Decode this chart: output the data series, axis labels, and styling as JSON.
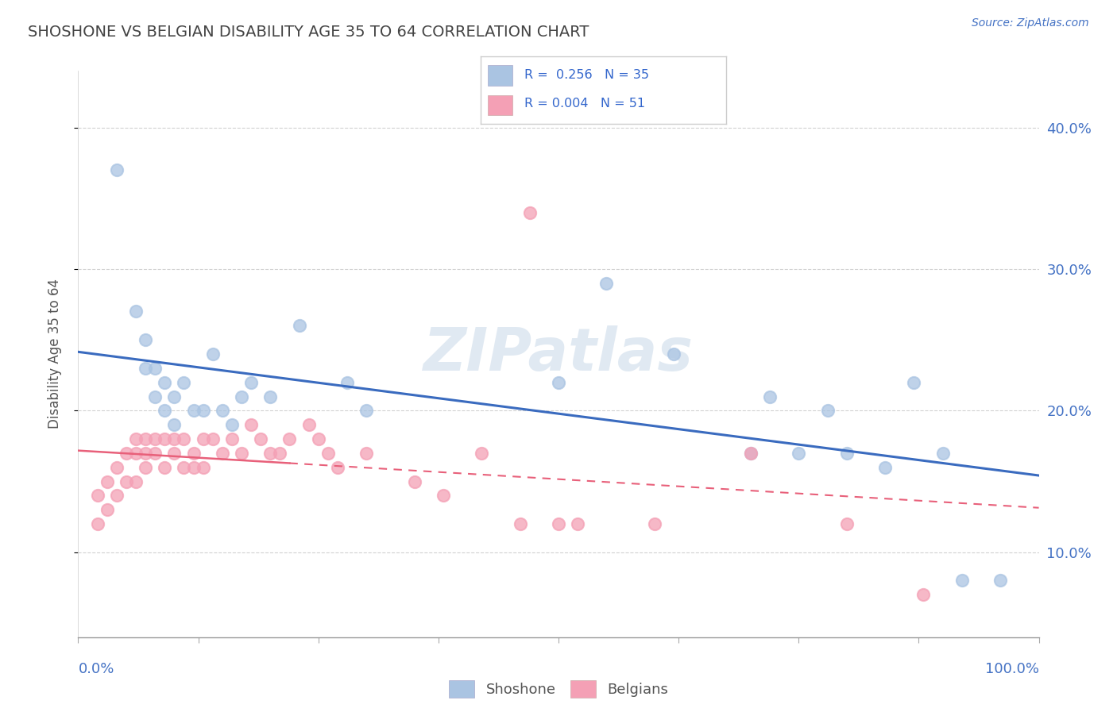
{
  "title": "SHOSHONE VS BELGIAN DISABILITY AGE 35 TO 64 CORRELATION CHART",
  "source_text": "Source: ZipAtlas.com",
  "ylabel": "Disability Age 35 to 64",
  "yticks": [
    0.1,
    0.2,
    0.3,
    0.4
  ],
  "ytick_labels": [
    "10.0%",
    "20.0%",
    "30.0%",
    "40.0%"
  ],
  "xlim": [
    0.0,
    1.0
  ],
  "ylim": [
    0.04,
    0.44
  ],
  "shoshone_color": "#aac4e2",
  "belgian_color": "#f4a0b5",
  "shoshone_line_color": "#3a6bbf",
  "belgian_line_color": "#e8607a",
  "shoshone_x": [
    0.04,
    0.06,
    0.07,
    0.07,
    0.08,
    0.08,
    0.09,
    0.09,
    0.1,
    0.1,
    0.11,
    0.12,
    0.13,
    0.14,
    0.15,
    0.16,
    0.17,
    0.18,
    0.2,
    0.23,
    0.28,
    0.3,
    0.5,
    0.55,
    0.62,
    0.7,
    0.72,
    0.75,
    0.78,
    0.8,
    0.84,
    0.87,
    0.9,
    0.92,
    0.96
  ],
  "shoshone_y": [
    0.37,
    0.27,
    0.25,
    0.23,
    0.23,
    0.21,
    0.22,
    0.2,
    0.21,
    0.19,
    0.22,
    0.2,
    0.2,
    0.24,
    0.2,
    0.19,
    0.21,
    0.22,
    0.21,
    0.26,
    0.22,
    0.2,
    0.22,
    0.29,
    0.24,
    0.17,
    0.21,
    0.17,
    0.2,
    0.17,
    0.16,
    0.22,
    0.17,
    0.08,
    0.08
  ],
  "belgian_x": [
    0.02,
    0.02,
    0.03,
    0.03,
    0.04,
    0.04,
    0.05,
    0.05,
    0.06,
    0.06,
    0.06,
    0.07,
    0.07,
    0.07,
    0.08,
    0.08,
    0.09,
    0.09,
    0.1,
    0.1,
    0.11,
    0.11,
    0.12,
    0.12,
    0.13,
    0.13,
    0.14,
    0.15,
    0.16,
    0.17,
    0.18,
    0.19,
    0.2,
    0.21,
    0.22,
    0.24,
    0.25,
    0.26,
    0.27,
    0.3,
    0.35,
    0.38,
    0.42,
    0.46,
    0.47,
    0.5,
    0.52,
    0.6,
    0.7,
    0.8,
    0.88
  ],
  "belgian_y": [
    0.14,
    0.12,
    0.15,
    0.13,
    0.16,
    0.14,
    0.17,
    0.15,
    0.18,
    0.17,
    0.15,
    0.18,
    0.17,
    0.16,
    0.18,
    0.17,
    0.18,
    0.16,
    0.18,
    0.17,
    0.18,
    0.16,
    0.17,
    0.16,
    0.18,
    0.16,
    0.18,
    0.17,
    0.18,
    0.17,
    0.19,
    0.18,
    0.17,
    0.17,
    0.18,
    0.19,
    0.18,
    0.17,
    0.16,
    0.17,
    0.15,
    0.14,
    0.17,
    0.12,
    0.34,
    0.12,
    0.12,
    0.12,
    0.17,
    0.12,
    0.07
  ],
  "watermark_text": "ZIPatlas",
  "legend_line1": "R =  0.256   N = 35",
  "legend_line2": "R = 0.004   N = 51"
}
